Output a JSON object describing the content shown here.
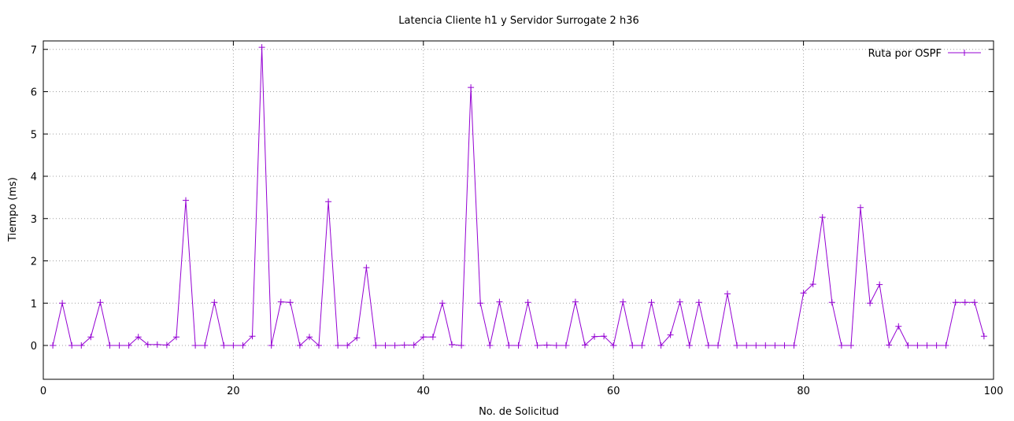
{
  "colors": {
    "series": "#9400d3",
    "grid": "#a0a0a0",
    "frame": "#000000"
  },
  "chart_data": {
    "type": "line",
    "title": "Latencia Cliente h1 y Servidor Surrogate 2 h36",
    "xlabel": "No. de Solicitud",
    "ylabel": "Tiempo (ms)",
    "xlim": [
      0,
      100
    ],
    "ylim": [
      -0.8,
      7.2
    ],
    "xticks": [
      0,
      20,
      40,
      60,
      80,
      100
    ],
    "yticks": [
      0,
      1,
      2,
      3,
      4,
      5,
      6,
      7
    ],
    "grid": true,
    "legend_position": "top-right",
    "series": [
      {
        "name": "Ruta por OSPF",
        "marker": "+",
        "x": [
          1,
          2,
          3,
          4,
          5,
          6,
          7,
          8,
          9,
          10,
          11,
          12,
          13,
          14,
          15,
          16,
          17,
          18,
          19,
          20,
          21,
          22,
          23,
          24,
          25,
          26,
          27,
          28,
          29,
          30,
          31,
          32,
          33,
          34,
          35,
          36,
          37,
          38,
          39,
          40,
          41,
          42,
          43,
          44,
          45,
          46,
          47,
          48,
          49,
          50,
          51,
          52,
          53,
          54,
          55,
          56,
          57,
          58,
          59,
          60,
          61,
          62,
          63,
          64,
          65,
          66,
          67,
          68,
          69,
          70,
          71,
          72,
          73,
          74,
          75,
          76,
          77,
          78,
          79,
          80,
          81,
          82,
          83,
          84,
          85,
          86,
          87,
          88,
          89,
          90,
          91,
          92,
          93,
          94,
          95,
          96,
          97,
          98,
          99
        ],
        "y": [
          0.0,
          1.0,
          0.0,
          0.0,
          0.2,
          1.02,
          0.0,
          0.0,
          0.0,
          0.2,
          0.02,
          0.02,
          0.01,
          0.2,
          3.43,
          0.0,
          0.0,
          1.02,
          0.0,
          0.0,
          0.0,
          0.22,
          7.05,
          0.0,
          1.03,
          1.02,
          0.0,
          0.2,
          0.0,
          3.4,
          0.0,
          0.0,
          0.18,
          1.84,
          0.0,
          0.0,
          0.0,
          0.01,
          0.01,
          0.2,
          0.2,
          1.0,
          0.02,
          0.0,
          6.1,
          1.0,
          0.0,
          1.03,
          0.0,
          0.0,
          1.02,
          0.0,
          0.01,
          0.0,
          0.0,
          1.03,
          0.01,
          0.21,
          0.22,
          0.0,
          1.03,
          0.0,
          0.0,
          1.02,
          0.0,
          0.25,
          1.03,
          0.0,
          1.02,
          0.0,
          0.0,
          1.22,
          0.0,
          0.0,
          0.0,
          0.0,
          0.0,
          0.0,
          0.0,
          1.24,
          1.45,
          3.03,
          1.02,
          0.0,
          0.0,
          3.26,
          1.0,
          1.44,
          0.01,
          0.45,
          0.0,
          0.0,
          0.0,
          0.0,
          0.0,
          1.02,
          1.02,
          1.02,
          0.22
        ]
      }
    ]
  }
}
